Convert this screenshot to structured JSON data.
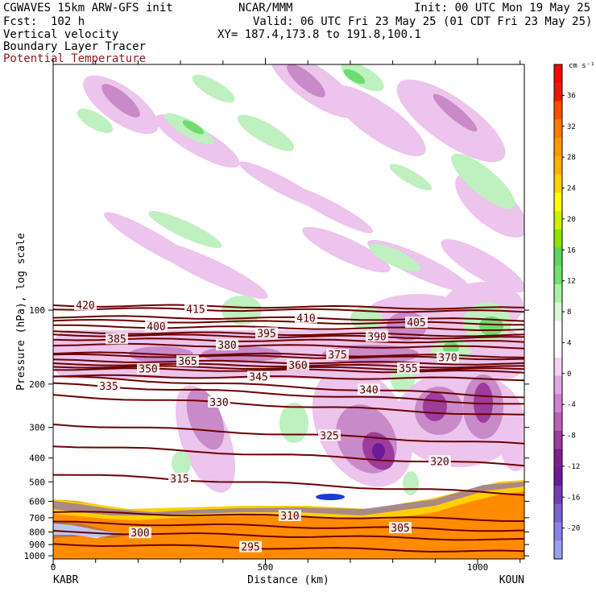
{
  "header": {
    "title_left": "CGWAVES 15km ARW-GFS init",
    "center_org": "NCAR/MMM",
    "init": "Init: 00 UTC Mon 19 May 25",
    "fcst": "Fcst:  102 h",
    "valid": "Valid: 06 UTC Fri 23 May 25 (01 CDT Fri 23 May 25)",
    "field1": "Vertical velocity",
    "xy": "XY= 187.4,173.8 to 191.8,100.1",
    "field2": "Boundary Layer Tracer",
    "field3": "Potential Temperature"
  },
  "colors": {
    "theta_line": "#6b0000",
    "field3_text": "#8b1a1a"
  },
  "chart_data": {
    "type": "heatmap",
    "ylabel": "Pressure (hPa), log scale",
    "xlabel": "Distance (km)",
    "x_ticks": [
      0,
      500,
      1000
    ],
    "y_ticks": [
      100,
      200,
      300,
      400,
      500,
      600,
      700,
      800,
      900,
      1000
    ],
    "xlim": [
      0,
      1110
    ],
    "ylim": [
      1030,
      10
    ],
    "y_scale": "log",
    "grid": false,
    "start_label": "KABR",
    "end_label": "KOUN",
    "colorbar": {
      "unit": "cm s⁻¹",
      "labels": [
        36,
        32,
        28,
        24,
        20,
        16,
        12,
        8,
        4,
        0,
        -4,
        -8,
        -12,
        -16,
        -20
      ],
      "colors": [
        "#ff0000",
        "#e81a00",
        "#ff4d00",
        "#ff7a00",
        "#ff9900",
        "#ffb000",
        "#ffd000",
        "#ffff00",
        "#ccf000",
        "#8ee000",
        "#5cd65c",
        "#70e070",
        "#a8f0a8",
        "#d8f8d8",
        "#ffffff",
        "#ffffff",
        "#f2d2f2",
        "#e0a8e0",
        "#cf80cf",
        "#b862b8",
        "#9c3c9c",
        "#7e1f8a",
        "#6a1b9a",
        "#7040b0",
        "#7a62d0",
        "#8a80e8",
        "#9aa0f0"
      ]
    },
    "theta_contours": [
      {
        "label": "420",
        "p": 97
      },
      {
        "label": "415",
        "p": 100
      },
      {
        "label": "410",
        "p": 108
      },
      {
        "label": "405",
        "p": 112
      },
      {
        "label": "400",
        "p": 118
      },
      {
        "label": "395",
        "p": 125
      },
      {
        "label": "390",
        "p": 128
      },
      {
        "label": "385",
        "p": 133
      },
      {
        "label": "380",
        "p": 140
      },
      {
        "label": "375",
        "p": 152
      },
      {
        "label": "370",
        "p": 155
      },
      {
        "label": "365",
        "p": 163
      },
      {
        "label": "360",
        "p": 168
      },
      {
        "label": "355",
        "p": 172
      },
      {
        "label": "350",
        "p": 176
      },
      {
        "label": "345",
        "p": 188
      },
      {
        "label": "340",
        "p": 205
      },
      {
        "label": "335",
        "p": 220
      },
      {
        "label": "330",
        "p": 245
      },
      {
        "label": "325",
        "p": 320
      },
      {
        "label": "320",
        "p": 390
      },
      {
        "label": "315",
        "p": 510
      },
      {
        "label": "310",
        "p": 690
      },
      {
        "label": "305",
        "p": 760
      },
      {
        "label": "300",
        "p": 830
      },
      {
        "label": "295",
        "p": 930
      }
    ]
  }
}
